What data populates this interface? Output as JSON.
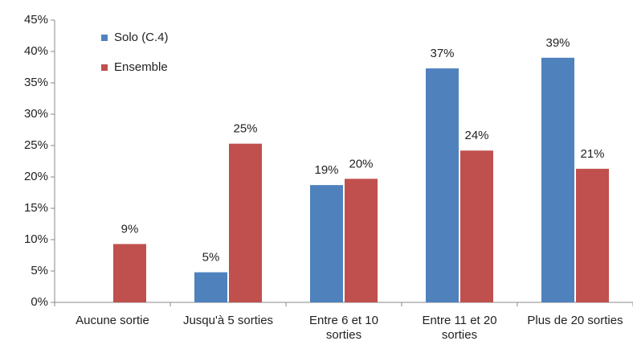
{
  "chart_data": {
    "type": "bar",
    "categories": [
      "Aucune sortie",
      "Jusqu'à 5 sorties",
      "Entre 6 et 10 sorties",
      "Entre 11 et 20 sorties",
      "Plus de 20 sorties"
    ],
    "series": [
      {
        "name": "Solo (C.4)",
        "color": "#4f81bd",
        "values": [
          null,
          4.8,
          18.7,
          37.3,
          39
        ],
        "value_labels": [
          null,
          "5%",
          "19%",
          "37%",
          "39%"
        ]
      },
      {
        "name": "Ensemble",
        "color": "#c0504d",
        "values": [
          9.3,
          25.3,
          19.7,
          24.2,
          21.3
        ],
        "value_labels": [
          "9%",
          "25%",
          "20%",
          "24%",
          "21%"
        ]
      }
    ],
    "ylim": [
      0,
      45
    ],
    "yticks": [
      {
        "value": 0,
        "label": "0%"
      },
      {
        "value": 5,
        "label": "5%"
      },
      {
        "value": 10,
        "label": "10%"
      },
      {
        "value": 15,
        "label": "15%"
      },
      {
        "value": 20,
        "label": "20%"
      },
      {
        "value": 25,
        "label": "25%"
      },
      {
        "value": 30,
        "label": "30%"
      },
      {
        "value": 35,
        "label": "35%"
      },
      {
        "value": 40,
        "label": "40%"
      },
      {
        "value": 45,
        "label": "45%"
      }
    ],
    "legend": "top-left"
  }
}
